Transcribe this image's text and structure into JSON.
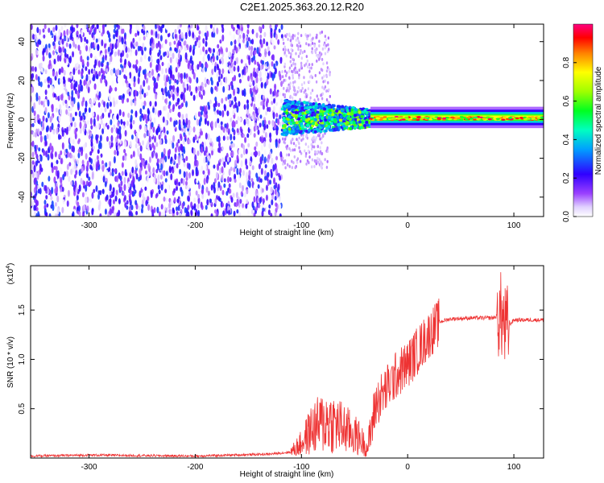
{
  "title": "C2E1.2025.363.20.12.R20",
  "chart_data": [
    {
      "type": "heatmap",
      "title": "C2E1.2025.363.20.12.R20",
      "xlabel": "Height of straight line (km)",
      "ylabel": "Frequency (Hz)",
      "xlim": [
        -355,
        128
      ],
      "ylim": [
        -50,
        49
      ],
      "xticks": [
        -300,
        -200,
        -100,
        0,
        100
      ],
      "yticks": [
        -40,
        -20,
        0,
        20,
        40
      ],
      "colorbar": {
        "label": "Normalized spectral amplitude",
        "range": [
          0.0,
          1.0
        ],
        "ticks": [
          "0.0",
          "0.2",
          "0.4",
          "0.6",
          "0.8"
        ],
        "colors": [
          "#ffffff",
          "#c8a8ff",
          "#7f00ff",
          "#0000ff",
          "#00c8ff",
          "#00ff80",
          "#80ff00",
          "#ffff00",
          "#ff8000",
          "#ff0000",
          "#ff0080"
        ]
      },
      "regions": [
        {
          "x": [
            -355,
            -118
          ],
          "description_value": "scattered noise 0.0-0.35 across all frequencies"
        },
        {
          "x": [
            -118,
            -35
          ],
          "freq_band": [
            -8,
            10
          ],
          "amplitude": [
            0.2,
            0.7
          ]
        },
        {
          "x": [
            -35,
            128
          ],
          "freq_band": [
            -3,
            4
          ],
          "amplitude": [
            0.5,
            1.0
          ]
        }
      ]
    },
    {
      "type": "line",
      "xlabel": "Height of straight line (km)",
      "ylabel": "SNR (10 * v/v)",
      "multiplier_label": "(x10",
      "multiplier_exp": "4",
      "xlim": [
        -355,
        128
      ],
      "ylim": [
        0,
        1.95
      ],
      "xticks": [
        -300,
        -200,
        -100,
        0,
        100
      ],
      "yticks": [
        "0.5",
        "1.0",
        "1.5"
      ],
      "series": [
        {
          "color": "#ee3333",
          "x": [
            -355,
            -300,
            -200,
            -130,
            -110,
            -100,
            -90,
            -75,
            -60,
            -45,
            -38,
            -35,
            -30,
            -20,
            -10,
            0,
            10,
            20,
            30,
            40,
            60,
            80,
            88,
            92,
            100,
            128
          ],
          "y": [
            0.02,
            0.03,
            0.02,
            0.04,
            0.06,
            0.15,
            0.3,
            0.38,
            0.3,
            0.2,
            0.1,
            0.25,
            0.55,
            0.7,
            0.85,
            0.95,
            1.1,
            1.25,
            1.38,
            1.41,
            1.42,
            1.42,
            1.45,
            1.3,
            1.4,
            1.4
          ]
        }
      ]
    }
  ]
}
